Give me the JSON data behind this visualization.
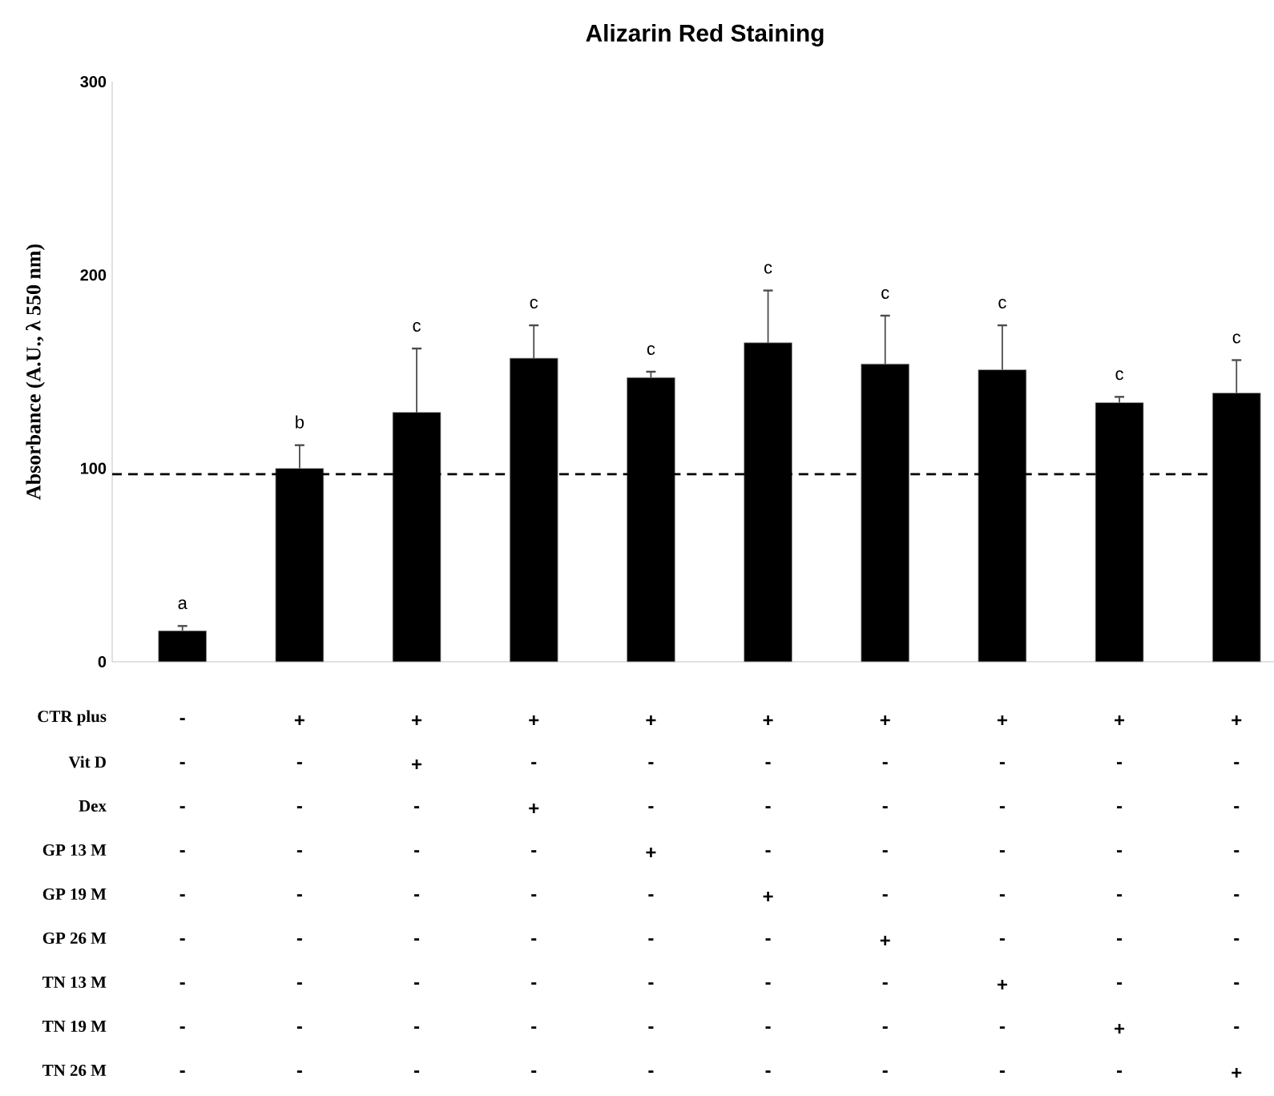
{
  "chart_data": {
    "type": "bar",
    "title": "Alizarin Red Staining",
    "ylabel": "Absorbance (A.U., λ 550 nm)",
    "categories": [
      null,
      null,
      null,
      null,
      null,
      null,
      null,
      null,
      null,
      null
    ],
    "values": [
      16,
      100,
      129,
      157,
      147,
      165,
      154,
      151,
      134,
      139
    ],
    "errors": [
      2.5,
      12,
      33,
      17,
      3,
      27,
      25,
      23,
      3,
      17
    ],
    "color": "#000000",
    "ylim": [
      0,
      300
    ],
    "yticks": [
      0,
      100,
      200,
      300
    ],
    "tick_labels": "y",
    "ref_lines": [
      {
        "axis": "y",
        "value": 97,
        "line_style": "dashed",
        "color": "#000000"
      }
    ],
    "annotations": [
      "a",
      "b",
      "c",
      "c",
      "c",
      "c",
      "c",
      "c",
      "c",
      "c",
      "CTR plus",
      "-",
      "+",
      "+",
      "+",
      "+",
      "+",
      "+",
      "+",
      "+",
      "+",
      "Vit D",
      "-",
      "-",
      "+",
      "-",
      "-",
      "-",
      "-",
      "-",
      "-",
      "-",
      "Dex",
      "-",
      "-",
      "-",
      "+",
      "-",
      "-",
      "-",
      "-",
      "-",
      "-",
      "GP 13 M",
      "-",
      "-",
      "-",
      "-",
      "+",
      "-",
      "-",
      "-",
      "-",
      "-",
      "GP 19 M",
      "-",
      "-",
      "-",
      "-",
      "-",
      "+",
      "-",
      "-",
      "-",
      "-",
      "GP 26 M",
      "-",
      "-",
      "-",
      "-",
      "-",
      "-",
      "+",
      "-",
      "-",
      "-",
      "TN 13 M",
      "-",
      "-",
      "-",
      "-",
      "-",
      "-",
      "-",
      "+",
      "-",
      "-",
      "TN 19 M",
      "-",
      "-",
      "-",
      "-",
      "-",
      "-",
      "-",
      "-",
      "+",
      "-",
      "TN 26 M",
      "-",
      "-",
      "-",
      "-",
      "-",
      "-",
      "-",
      "-",
      "-",
      "+"
    ]
  }
}
